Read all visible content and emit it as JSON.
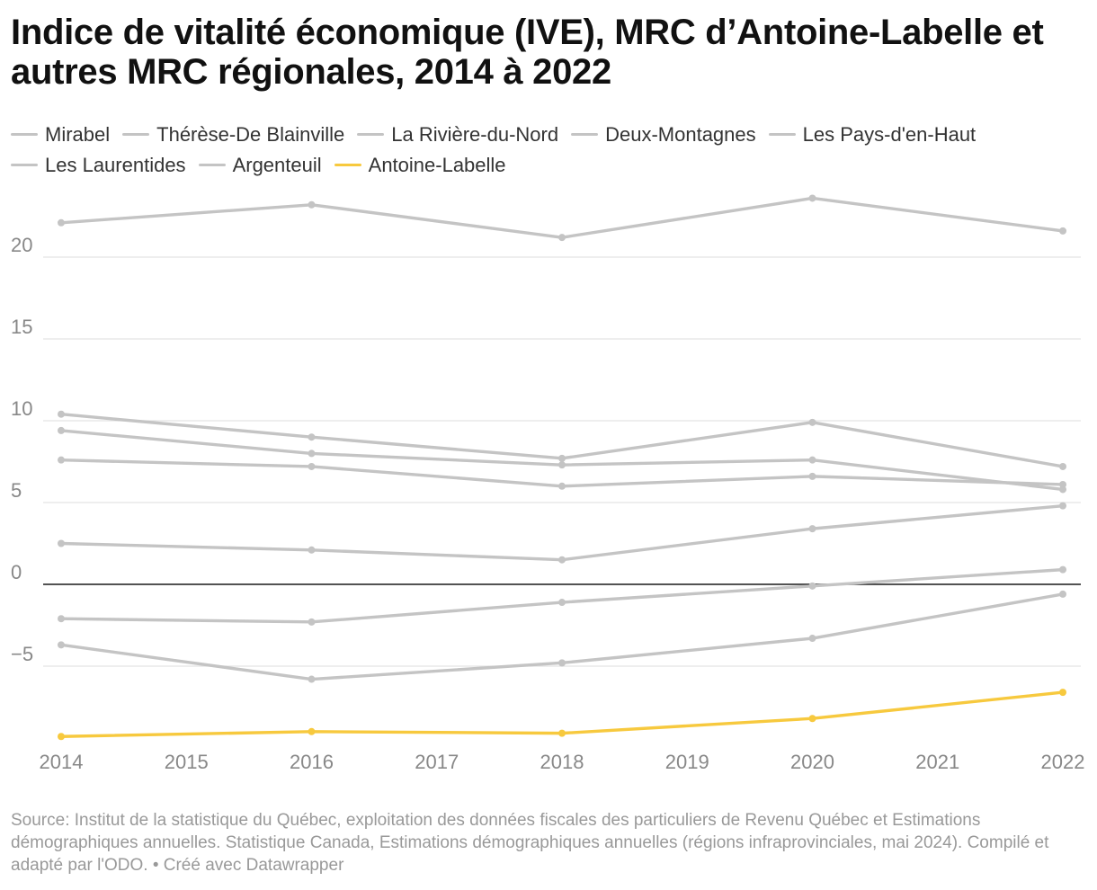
{
  "title": "Indice de vitalité économique (IVE), MRC d’Antoine-Labelle et autres MRC régionales, 2014 à 2022",
  "footer": "Source: Institut de la statistique du Québec, exploitation des données fiscales des particuliers de Revenu Québec et Estimations démographiques annuelles. Statistique Canada, Estimations démographiques annuelles (régions infraprovinciales, mai 2024). Compilé et adapté par l'ODO. • Créé avec Datawrapper",
  "colors": {
    "muted": "#c4c4c4",
    "highlight": "#f7c93e",
    "zero_line": "#1a1a1a",
    "grid": "#e3e3e3",
    "tick_text": "#888888"
  },
  "chart_data": {
    "type": "line",
    "title": "Indice de vitalité économique (IVE), MRC d’Antoine-Labelle et autres MRC régionales, 2014 à 2022",
    "xlabel": "",
    "ylabel": "",
    "x": [
      2014,
      2016,
      2018,
      2020,
      2022
    ],
    "x_ticks": [
      2014,
      2015,
      2016,
      2017,
      2018,
      2019,
      2020,
      2021,
      2022
    ],
    "y_ticks": [
      -5,
      0,
      5,
      10,
      15,
      20
    ],
    "xlim": [
      2014,
      2022
    ],
    "ylim": [
      -9.6,
      24.5
    ],
    "grid": true,
    "legend_position": "top",
    "series": [
      {
        "name": "Mirabel",
        "color": "#c4c4c4",
        "values": [
          22.1,
          23.2,
          21.2,
          23.6,
          21.6
        ]
      },
      {
        "name": "Thérèse-De Blainville",
        "color": "#c4c4c4",
        "values": [
          10.4,
          9.0,
          7.7,
          9.9,
          7.2
        ]
      },
      {
        "name": "La Rivière-du-Nord",
        "color": "#c4c4c4",
        "values": [
          9.4,
          8.0,
          7.3,
          7.6,
          5.8
        ]
      },
      {
        "name": "Deux-Montagnes",
        "color": "#c4c4c4",
        "values": [
          7.6,
          7.2,
          6.0,
          6.6,
          6.1
        ]
      },
      {
        "name": "Les Pays-d'en-Haut",
        "color": "#c4c4c4",
        "values": [
          2.5,
          2.1,
          1.5,
          3.4,
          4.8
        ]
      },
      {
        "name": "Les Laurentides",
        "color": "#c4c4c4",
        "values": [
          -2.1,
          -2.3,
          -1.1,
          -0.1,
          0.9
        ]
      },
      {
        "name": "Argenteuil",
        "color": "#c4c4c4",
        "values": [
          -3.7,
          -5.8,
          -4.8,
          -3.3,
          -0.6
        ]
      },
      {
        "name": "Antoine-Labelle",
        "color": "#f7c93e",
        "values": [
          -9.3,
          -9.0,
          -9.1,
          -8.2,
          -6.6
        ]
      }
    ]
  }
}
